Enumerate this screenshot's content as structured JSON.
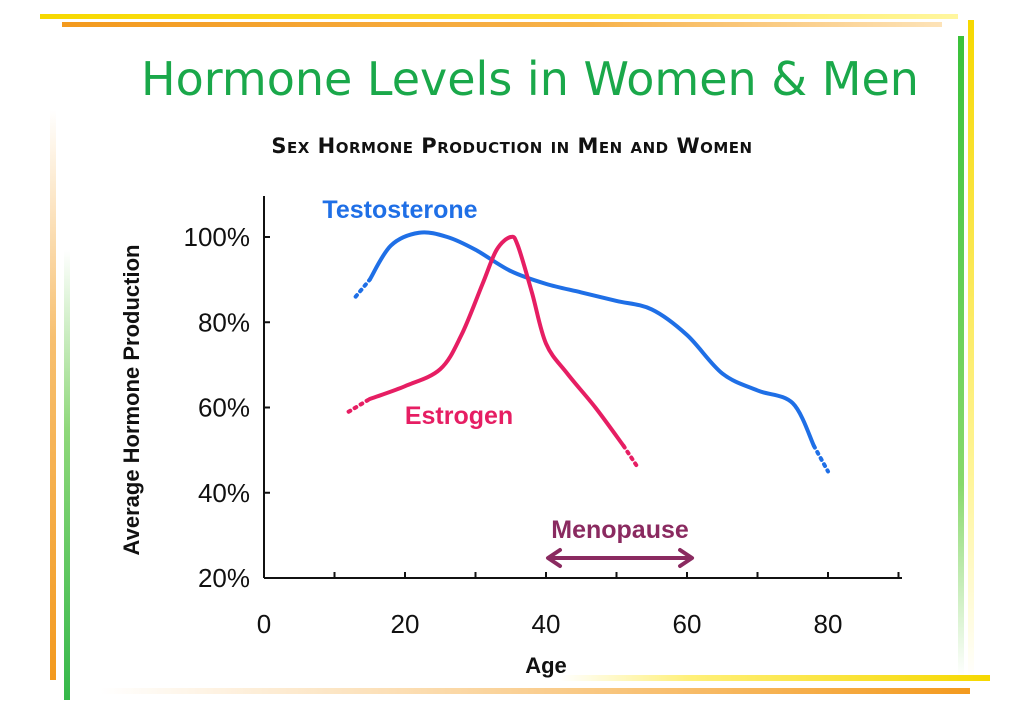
{
  "slide": {
    "title": "Hormone Levels in Women & Men"
  },
  "chart_data": {
    "type": "line",
    "title": "Sex Hormone Production in Men and Women",
    "xlabel": "Age",
    "ylabel": "Average Hormone Production",
    "xlim": [
      0,
      90
    ],
    "ylim": [
      20,
      110
    ],
    "xticks": [
      0,
      20,
      40,
      60,
      80
    ],
    "yticks": [
      20,
      40,
      60,
      80,
      100
    ],
    "ytick_labels": [
      "20%",
      "40%",
      "60%",
      "80%",
      "100%"
    ],
    "series": [
      {
        "name": "Testosterone",
        "color": "#1f6fe6",
        "dotted_start": [
          [
            13,
            86
          ],
          [
            15,
            90
          ]
        ],
        "x": [
          15,
          18,
          22,
          26,
          30,
          35,
          40,
          45,
          50,
          55,
          60,
          65,
          70,
          75,
          78
        ],
        "y": [
          90,
          98,
          101,
          100,
          97,
          92,
          89,
          87,
          85,
          83,
          77,
          68,
          64,
          61,
          51
        ],
        "dotted_end": [
          [
            78,
            51
          ],
          [
            80,
            45
          ]
        ]
      },
      {
        "name": "Estrogen",
        "color": "#e61e63",
        "dotted_start": [
          [
            12,
            59
          ],
          [
            15,
            62
          ]
        ],
        "x": [
          15,
          20,
          25,
          28,
          31,
          33,
          35,
          36,
          38,
          40,
          43,
          47,
          51
        ],
        "y": [
          62,
          65,
          69,
          77,
          89,
          97,
          100,
          98,
          87,
          75,
          68,
          60,
          51
        ],
        "dotted_end": [
          [
            51,
            51
          ],
          [
            53,
            46
          ]
        ]
      }
    ],
    "annotations": [
      {
        "text": "Menopause",
        "color": "#8a2a60",
        "type": "double-arrow",
        "x_start": 40,
        "x_end": 61
      }
    ]
  }
}
